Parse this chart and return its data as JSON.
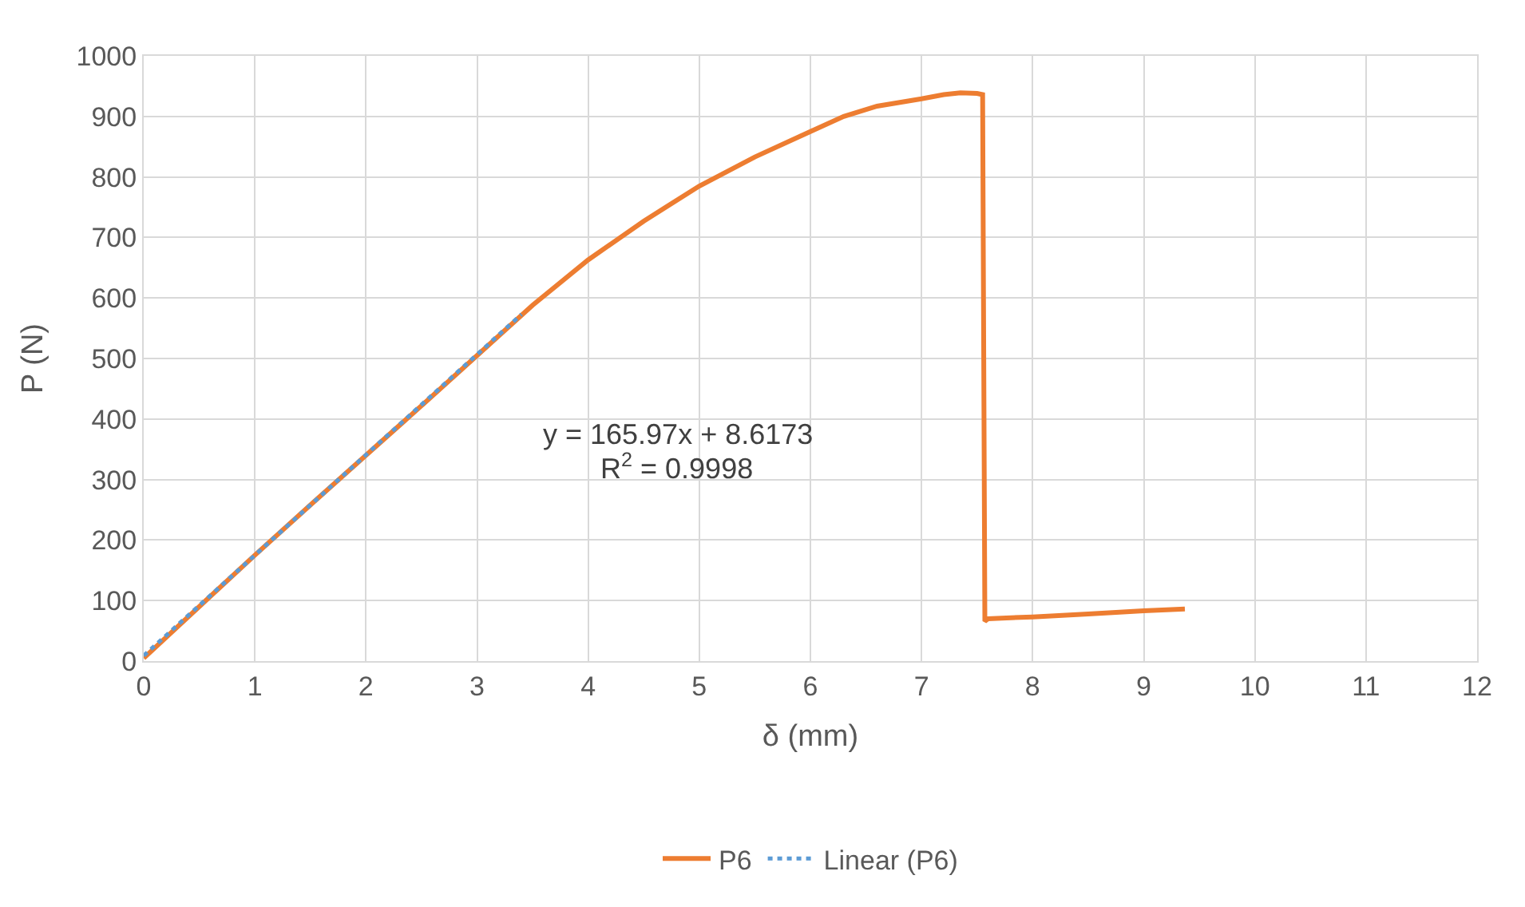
{
  "chart_data": {
    "type": "line",
    "xlabel": "δ (mm)",
    "ylabel": "P (N)",
    "xlim": [
      0,
      12
    ],
    "xticks": [
      0,
      1,
      2,
      3,
      4,
      5,
      6,
      7,
      8,
      9,
      10,
      11,
      12
    ],
    "ylim": [
      0,
      1000
    ],
    "yticks": [
      0,
      100,
      200,
      300,
      400,
      500,
      600,
      700,
      800,
      900,
      1000
    ],
    "grid": true,
    "legend": "bottom",
    "marker": "none",
    "series": [
      {
        "name": "P6",
        "color": "#ed7d31",
        "line_style": "solid",
        "x": [
          0,
          0.5,
          1,
          1.5,
          2,
          2.5,
          3,
          3.5,
          4,
          4.5,
          5,
          5.5,
          6,
          6.3,
          6.6,
          7,
          7.2,
          7.35,
          7.5,
          7.55,
          7.57,
          7.6,
          8,
          8.5,
          9,
          9.37
        ],
        "values": [
          5,
          90,
          175,
          258,
          340,
          422,
          505,
          588,
          663,
          727,
          785,
          833,
          875,
          900,
          917,
          929,
          936,
          939,
          938,
          936,
          66,
          70,
          73,
          78,
          83,
          86
        ]
      },
      {
        "name": "Linear (P6)",
        "color": "#5b9bd5",
        "line_style": "dotted",
        "x": [
          0,
          3.4
        ],
        "values": [
          9,
          573
        ]
      }
    ],
    "annotations": [
      "y = 165.97x + 8.6173",
      "R$^{2}$ = 0.9998"
    ]
  }
}
